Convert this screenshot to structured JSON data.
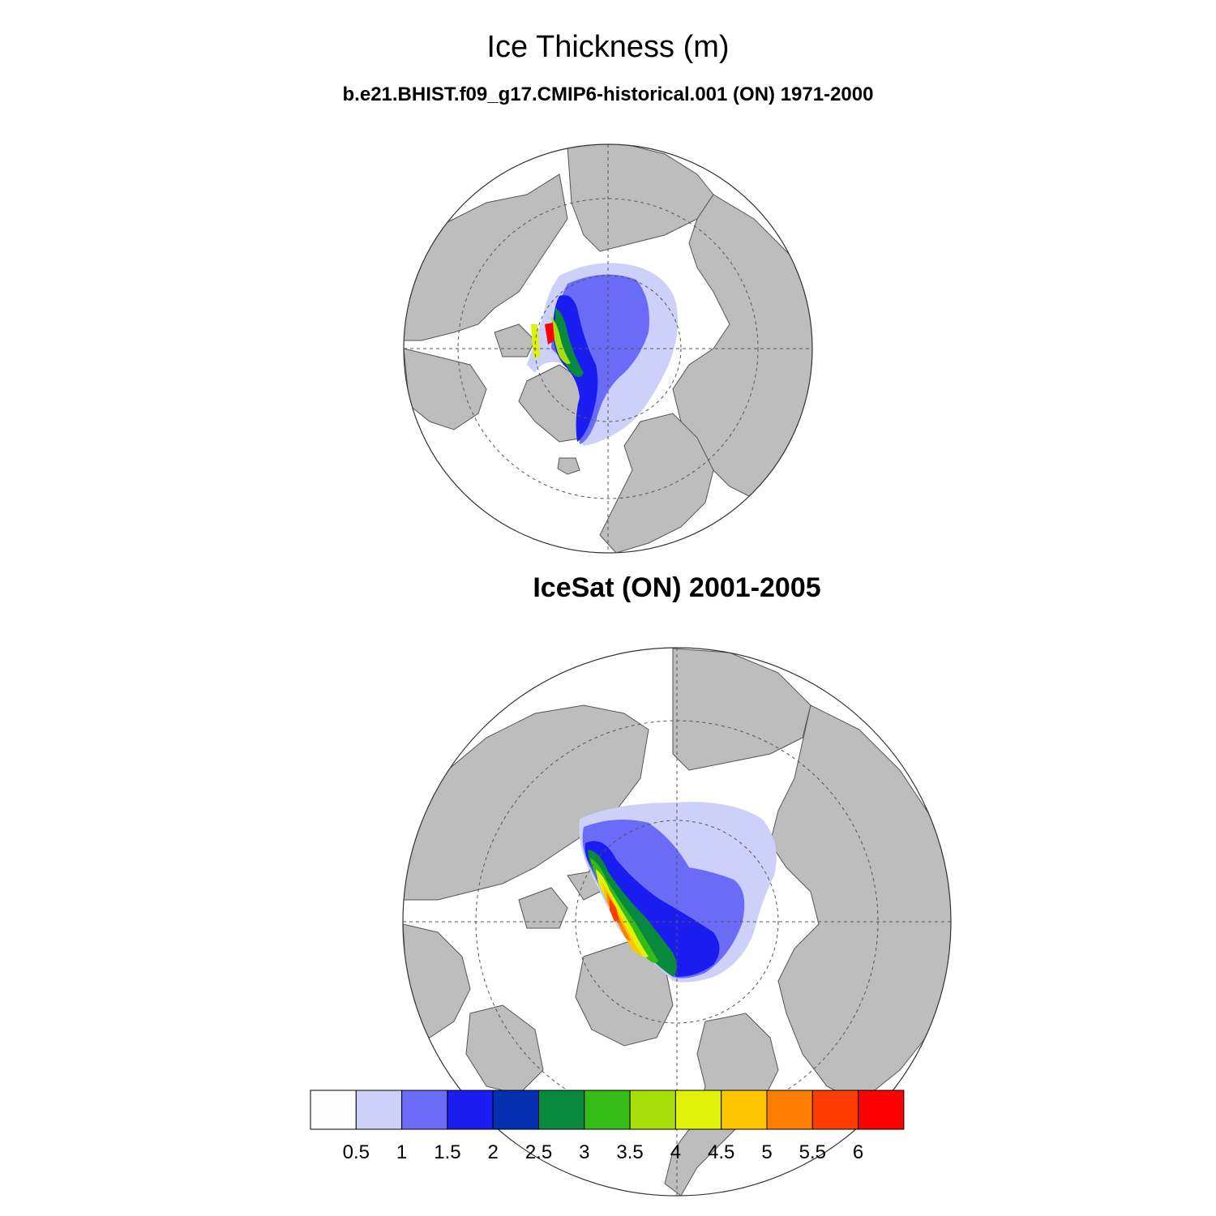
{
  "title": "Ice Thickness (m)",
  "panels": [
    {
      "subtitle": "b.e21.BHIST.f09_g17.CMIP6-historical.001 (ON) 1971-2000"
    },
    {
      "subtitle": "IceSat (ON) 2001-2005"
    }
  ],
  "colors": {
    "land": "#bdbdbd",
    "ocean": "#ffffff",
    "graticule": "#555555"
  },
  "colorbar": {
    "colors": [
      "#fdfdfd",
      "#cdd0f8",
      "#6a6bf7",
      "#1a1cf0",
      "#0230b0",
      "#088a3e",
      "#36bc16",
      "#a7df08",
      "#e0f20a",
      "#fdc500",
      "#fd7e00",
      "#fd3c00",
      "#fd0000"
    ],
    "labels": [
      "0.5",
      "1",
      "1.5",
      "2",
      "2.5",
      "3",
      "3.5",
      "4",
      "4.5",
      "5",
      "5.5",
      "6"
    ]
  }
}
